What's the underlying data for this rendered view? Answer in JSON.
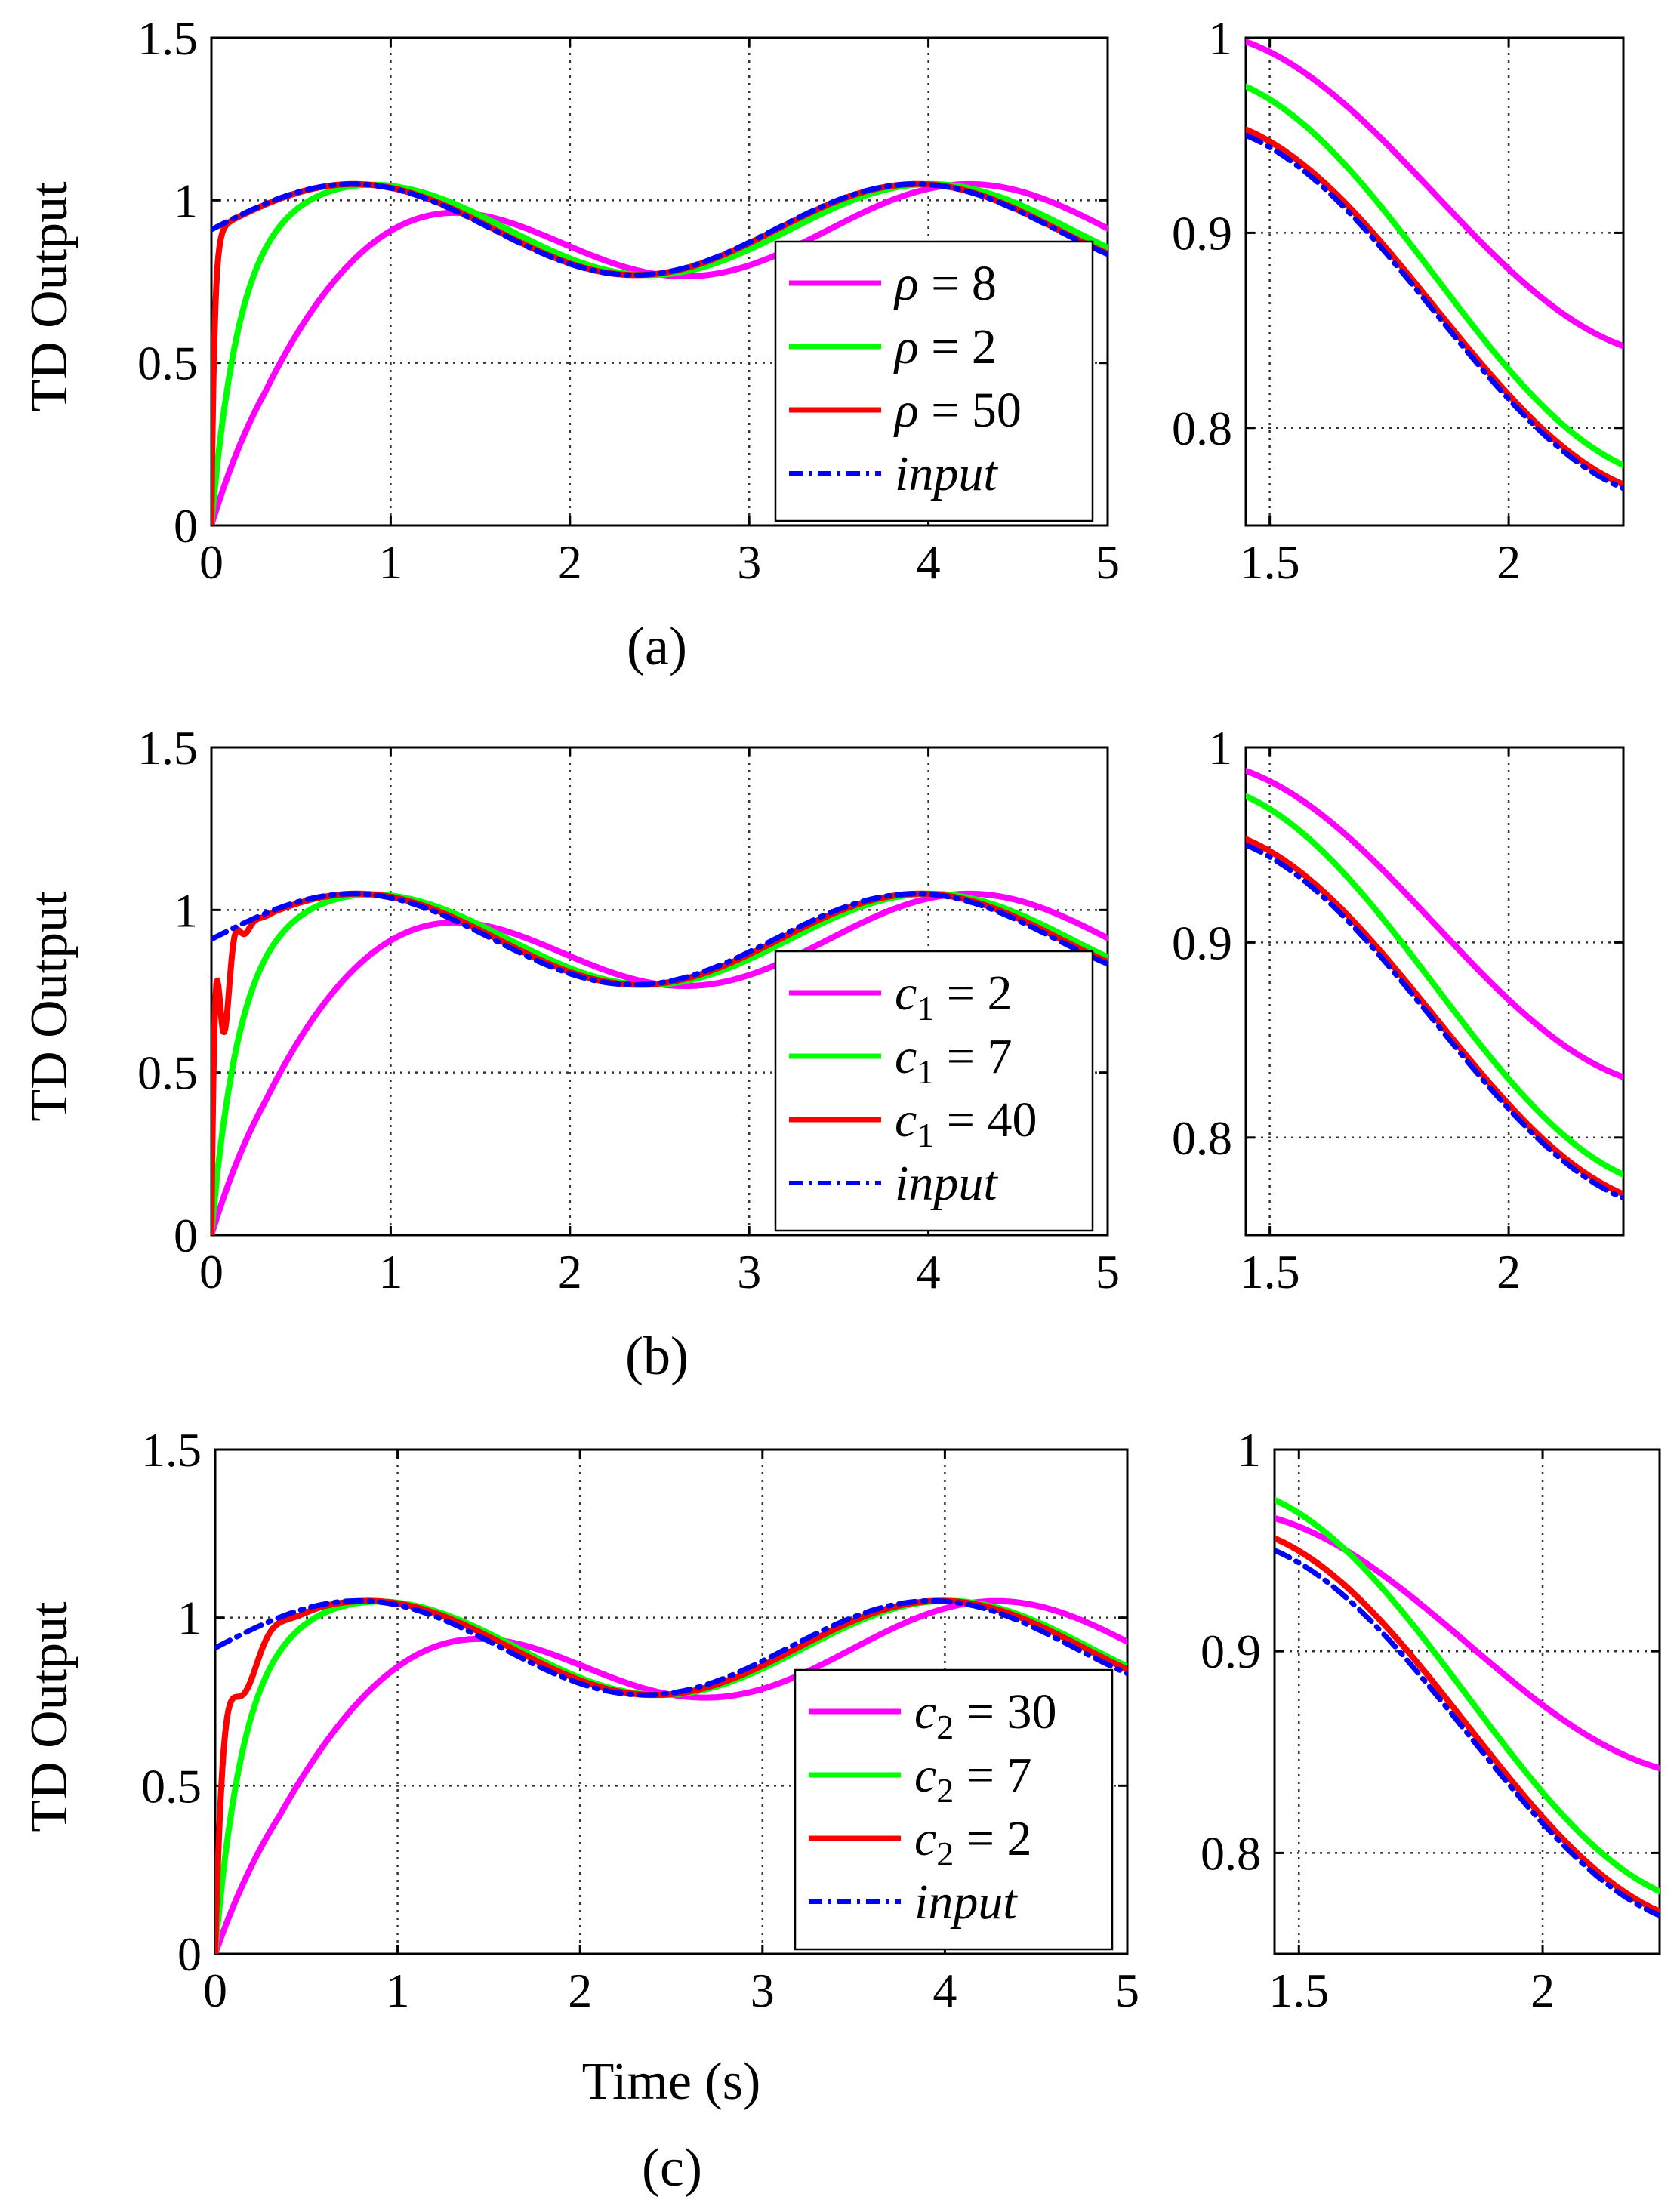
{
  "figure": {
    "xlabel": "Time (s)",
    "ylabel": "TD Output",
    "colors": {
      "magenta": "#ff00ff",
      "green": "#00ff00",
      "red": "#ff0000",
      "blue": "#0000ff"
    }
  },
  "chart_data": [
    {
      "id": "a",
      "type": "line",
      "caption": "(a)",
      "ylabel": "TD Output",
      "xlabel": "",
      "xlim": [
        0,
        5
      ],
      "ylim": [
        0,
        1.5
      ],
      "xticks": [
        "0",
        "1",
        "2",
        "3",
        "4",
        "5"
      ],
      "yticks": [
        "0",
        "0.5",
        "1",
        "1.5"
      ],
      "grid": true,
      "legend_position": "bottom-right",
      "series": [
        {
          "name": "ρ = 8",
          "sym": "ρ",
          "sub": "",
          "val": "8",
          "color": "#ff00ff",
          "style": "solid",
          "speed": 2.0,
          "overshoot": 0,
          "freq": 0
        },
        {
          "name": "ρ = 2",
          "sym": "ρ",
          "sub": "",
          "val": "2",
          "color": "#00ff00",
          "style": "solid",
          "speed": 7,
          "overshoot": 0,
          "freq": 0
        },
        {
          "name": "ρ = 50",
          "sym": "ρ",
          "sub": "",
          "val": "50",
          "color": "#ff0000",
          "style": "solid",
          "speed": 60,
          "overshoot": 0,
          "freq": 0
        },
        {
          "name": "input",
          "sym": "input",
          "sub": "",
          "val": "",
          "color": "#0000ff",
          "style": "dashdot",
          "speed": 0,
          "overshoot": 0,
          "freq": 0
        }
      ],
      "inset": {
        "xlim": [
          1.45,
          2.24
        ],
        "ylim": [
          0.75,
          1.0
        ],
        "xticks": [
          "1.5",
          "2"
        ],
        "yticks": [
          "0.8",
          "0.9",
          "1"
        ],
        "end_values": [
          {
            "start": 0.998,
            "end": 0.842
          },
          {
            "start": 0.975,
            "end": 0.781
          },
          {
            "start": 0.953,
            "end": 0.771
          },
          {
            "start": 0.95,
            "end": 0.769
          }
        ]
      }
    },
    {
      "id": "b",
      "type": "line",
      "caption": "(b)",
      "ylabel": "TD Output",
      "xlabel": "",
      "xlim": [
        0,
        5
      ],
      "ylim": [
        0,
        1.5
      ],
      "xticks": [
        "0",
        "1",
        "2",
        "3",
        "4",
        "5"
      ],
      "yticks": [
        "0",
        "0.5",
        "1",
        "1.5"
      ],
      "grid": true,
      "legend_position": "bottom-right",
      "series": [
        {
          "name": "c1 = 2",
          "sym": "c",
          "sub": "1",
          "val": "2",
          "color": "#ff00ff",
          "style": "solid",
          "speed": 2.0,
          "overshoot": 0,
          "freq": 0
        },
        {
          "name": "c1 = 7",
          "sym": "c",
          "sub": "1",
          "val": "7",
          "color": "#00ff00",
          "style": "solid",
          "speed": 7,
          "overshoot": 0,
          "freq": 0
        },
        {
          "name": "c1 = 40",
          "sym": "c",
          "sub": "1",
          "val": "40",
          "color": "#ff0000",
          "style": "solid",
          "speed": 22,
          "overshoot": 0.62,
          "freq": 55
        },
        {
          "name": "input",
          "sym": "input",
          "sub": "",
          "val": "",
          "color": "#0000ff",
          "style": "dashdot",
          "speed": 0,
          "overshoot": 0,
          "freq": 0
        }
      ],
      "inset": {
        "xlim": [
          1.45,
          2.24
        ],
        "ylim": [
          0.75,
          1.0
        ],
        "xticks": [
          "1.5",
          "2"
        ],
        "yticks": [
          "0.8",
          "0.9",
          "1"
        ],
        "end_values": [
          {
            "start": 0.988,
            "end": 0.831
          },
          {
            "start": 0.975,
            "end": 0.781
          },
          {
            "start": 0.953,
            "end": 0.771
          },
          {
            "start": 0.95,
            "end": 0.769
          }
        ]
      }
    },
    {
      "id": "c",
      "type": "line",
      "caption": "(c)",
      "ylabel": "TD Output",
      "xlabel": "Time (s)",
      "xlim": [
        0,
        5
      ],
      "ylim": [
        0,
        1.5
      ],
      "xticks": [
        "0",
        "1",
        "2",
        "3",
        "4",
        "5"
      ],
      "yticks": [
        "0",
        "0.5",
        "1",
        "1.5"
      ],
      "grid": true,
      "legend_position": "bottom-right",
      "series": [
        {
          "name": "c2 = 30",
          "sym": "c",
          "sub": "2",
          "val": "30",
          "color": "#ff00ff",
          "style": "solid",
          "speed": 1.7,
          "overshoot": 0,
          "freq": 0
        },
        {
          "name": "c2 = 7",
          "sym": "c",
          "sub": "2",
          "val": "7",
          "color": "#00ff00",
          "style": "solid",
          "speed": 7,
          "overshoot": 0,
          "freq": 0
        },
        {
          "name": "c2 = 2",
          "sym": "c",
          "sub": "2",
          "val": "2",
          "color": "#ff0000",
          "style": "solid",
          "speed": 12,
          "overshoot": 0.42,
          "freq": 22
        },
        {
          "name": "input",
          "sym": "input",
          "sub": "",
          "val": "",
          "color": "#0000ff",
          "style": "dashdot",
          "speed": 0,
          "overshoot": 0,
          "freq": 0
        }
      ],
      "inset": {
        "xlim": [
          1.45,
          2.24
        ],
        "ylim": [
          0.75,
          1.0
        ],
        "xticks": [
          "1.5",
          "2"
        ],
        "yticks": [
          "0.8",
          "0.9",
          "1"
        ],
        "end_values": [
          {
            "start": 0.966,
            "end": 0.842
          },
          {
            "start": 0.975,
            "end": 0.781
          },
          {
            "start": 0.956,
            "end": 0.771
          },
          {
            "start": 0.95,
            "end": 0.769
          }
        ]
      }
    }
  ]
}
